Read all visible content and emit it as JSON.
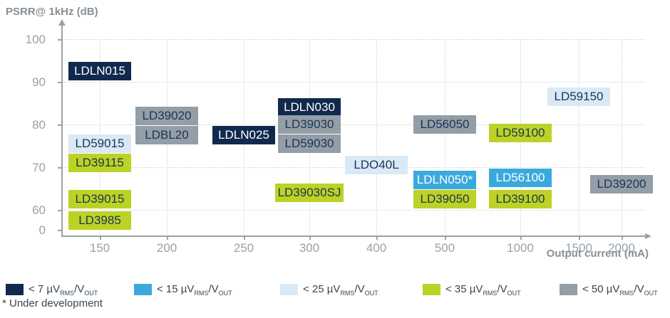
{
  "y_axis_title": "PSRR@ 1kHz (dB)",
  "x_axis_title": "Output current (mA)",
  "footnote": "* Under development",
  "colors": {
    "navy": "#12294e",
    "blue": "#3aa9dd",
    "pale": "#d9e9f6",
    "yellow": "#bcd225",
    "gray": "#939ea7",
    "text_dark": "#1c3553",
    "text_light": "#ffffff"
  },
  "legend": {
    "unit": {
      "prefix": "µV",
      "sub1": "RMS",
      "sep": "/V",
      "sub2": "OUT"
    },
    "items": [
      {
        "threshold": "< 7",
        "category": "navy"
      },
      {
        "threshold": "< 15",
        "category": "blue"
      },
      {
        "threshold": "< 25",
        "category": "pale"
      },
      {
        "threshold": "< 35",
        "category": "yellow"
      },
      {
        "threshold": "< 50",
        "category": "gray"
      }
    ]
  },
  "chart_data": {
    "type": "scatter",
    "title": "",
    "xlabel": "Output current (mA)",
    "ylabel": "PSRR@ 1kHz (dB)",
    "x_ticks": [
      150,
      200,
      250,
      300,
      400,
      500,
      1000,
      1500,
      2000
    ],
    "y_ticks": [
      100,
      90,
      80,
      70,
      60,
      0
    ],
    "x_scale": "non-linear category spacing",
    "grid": true,
    "legend_position": "bottom",
    "noise_categories": {
      "navy": "< 7 µVRMS/VOUT",
      "blue": "< 15 µVRMS/VOUT",
      "pale": "< 25 µVRMS/VOUT",
      "yellow": "< 35 µVRMS/VOUT",
      "gray": "< 50 µVRMS/VOUT"
    },
    "products": [
      {
        "name": "LDLN015",
        "current_mA": 150,
        "psrr_dB": 92.5,
        "category": "navy"
      },
      {
        "name": "LD59015",
        "current_mA": 150,
        "psrr_dB": 75.5,
        "category": "pale"
      },
      {
        "name": "LD39115",
        "current_mA": 150,
        "psrr_dB": 71,
        "category": "yellow"
      },
      {
        "name": "LD39015",
        "current_mA": 150,
        "psrr_dB": 62.5,
        "category": "yellow"
      },
      {
        "name": "LD3985",
        "current_mA": 150,
        "psrr_dB": 57.5,
        "category": "yellow"
      },
      {
        "name": "LD39020",
        "current_mA": 200,
        "psrr_dB": 82,
        "category": "gray"
      },
      {
        "name": "LDBL20",
        "current_mA": 200,
        "psrr_dB": 77.5,
        "category": "gray"
      },
      {
        "name": "LDLN025",
        "current_mA": 250,
        "psrr_dB": 77.5,
        "category": "navy"
      },
      {
        "name": "LDLN030",
        "current_mA": 300,
        "psrr_dB": 84,
        "category": "navy"
      },
      {
        "name": "LD39030",
        "current_mA": 300,
        "psrr_dB": 80,
        "category": "gray"
      },
      {
        "name": "LD59030",
        "current_mA": 300,
        "psrr_dB": 75.5,
        "category": "gray"
      },
      {
        "name": "LD39030SJ",
        "current_mA": 300,
        "psrr_dB": 64,
        "category": "yellow"
      },
      {
        "name": "LDO40L",
        "current_mA": 400,
        "psrr_dB": 70.5,
        "category": "pale"
      },
      {
        "name": "LD56050",
        "current_mA": 500,
        "psrr_dB": 80,
        "category": "gray"
      },
      {
        "name": "LDLN050*",
        "current_mA": 500,
        "psrr_dB": 67,
        "category": "blue"
      },
      {
        "name": "LD39050",
        "current_mA": 500,
        "psrr_dB": 62.5,
        "category": "yellow"
      },
      {
        "name": "LD59100",
        "current_mA": 1000,
        "psrr_dB": 78,
        "category": "yellow"
      },
      {
        "name": "LD56100",
        "current_mA": 1000,
        "psrr_dB": 67.5,
        "category": "blue"
      },
      {
        "name": "LD39100",
        "current_mA": 1000,
        "psrr_dB": 62.5,
        "category": "yellow"
      },
      {
        "name": "LD59150",
        "current_mA": 1500,
        "psrr_dB": 86.5,
        "category": "pale"
      },
      {
        "name": "LD39200",
        "current_mA": 2000,
        "psrr_dB": 66,
        "category": "gray"
      }
    ]
  }
}
